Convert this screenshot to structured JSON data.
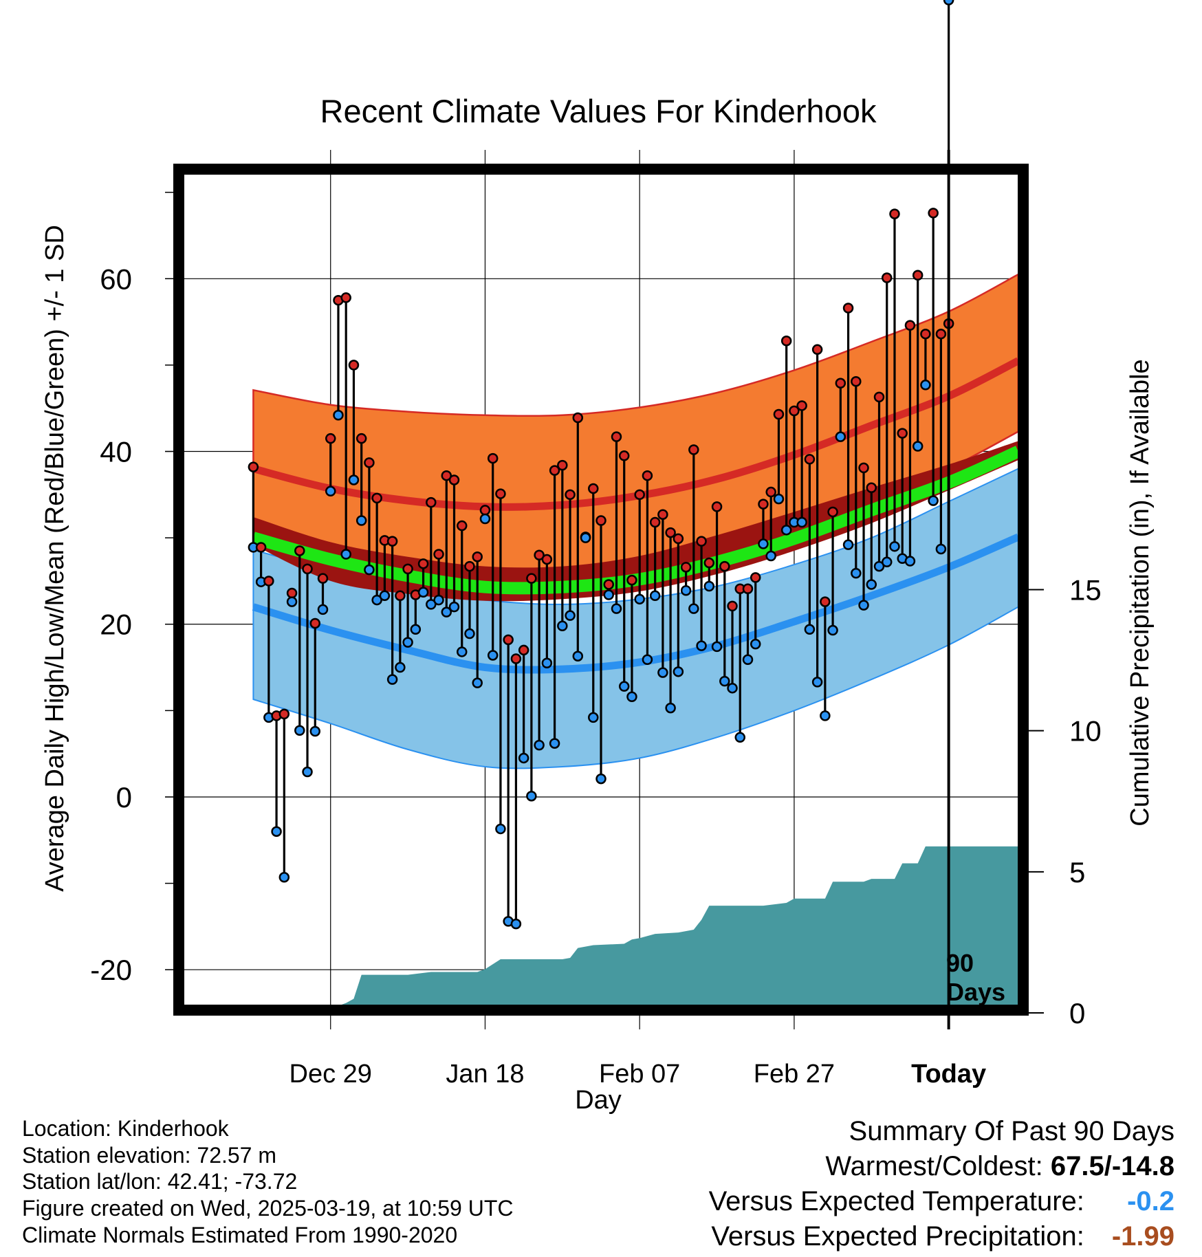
{
  "chart_data": {
    "type": "line",
    "title": "Recent Climate Values For Kinderhook",
    "xlabel": "Day",
    "ylabel_left": "Average Daily High/Low/Mean (Red/Blue/Green) +/- 1 SD",
    "ylabel_right": "Cumulative Precipitation (in), If Available",
    "x_range_days": [
      -100,
      10
    ],
    "ylim_left": [
      -25,
      73
    ],
    "ylim_right": [
      0,
      30
    ],
    "x_ticks": [
      {
        "day": -80,
        "label": "Dec 29"
      },
      {
        "day": -60,
        "label": "Jan 18"
      },
      {
        "day": -40,
        "label": "Feb 07"
      },
      {
        "day": -20,
        "label": "Feb 27"
      },
      {
        "day": 0,
        "label": "Today"
      }
    ],
    "y_ticks_left": [
      "-20",
      "0",
      "20",
      "40",
      "60"
    ],
    "y_ticks_right": [
      "0",
      "5",
      "10",
      "15"
    ],
    "today_marker_label": [
      "90",
      "Days"
    ],
    "colors": {
      "high_band": "#f47b30",
      "high_mean": "#d52a25",
      "low_band": "#85c3e8",
      "low_mean": "#2b91f0",
      "mean_band": "#9b1411",
      "mean_line": "#1ee614",
      "precip": "#47999f",
      "obs_high": "#d52a25",
      "obs_low": "#2b91f0"
    },
    "normal_curve_days": [
      -90,
      -80,
      -70,
      -60,
      -50,
      -40,
      -30,
      -20,
      -10,
      0,
      9
    ],
    "normals": {
      "high_mean": [
        38,
        35.7,
        34.3,
        33.6,
        33.8,
        34.9,
        36.8,
        39.6,
        43,
        46.4,
        50.5
      ],
      "high_upper": [
        47.1,
        45.4,
        44.6,
        44.2,
        44.2,
        45.1,
        46.8,
        49.4,
        52.7,
        56.2,
        60.5
      ],
      "high_lower": [
        29.2,
        26.6,
        24.9,
        24.4,
        24.8,
        26.0,
        28.0,
        30.5,
        34.0,
        38.0,
        42.3
      ],
      "low_mean": [
        22.0,
        19.3,
        17.0,
        15.0,
        14.8,
        15.6,
        17.5,
        20.3,
        23.3,
        26.6,
        30.1
      ],
      "low_upper": [
        28.6,
        26.2,
        24.2,
        22.8,
        22.3,
        22.9,
        24.4,
        26.9,
        30.0,
        34.2,
        38.0
      ],
      "low_lower": [
        11.3,
        8.5,
        5.5,
        3.5,
        3.5,
        4.5,
        6.9,
        10.0,
        13.6,
        17.6,
        22.0
      ],
      "mean_mean": [
        30.0,
        27.5,
        25.6,
        24.3,
        24.3,
        25.2,
        27.2,
        29.9,
        33.2,
        36.4,
        40.0
      ],
      "mean_upper": [
        32.4,
        29.5,
        27.8,
        26.7,
        26.7,
        27.9,
        30.3,
        33.0,
        35.8,
        38.5,
        41.2
      ],
      "mean_lower": [
        29.2,
        25.0,
        23.5,
        22.7,
        22.9,
        23.8,
        25.8,
        28.5,
        31.7,
        35.5,
        39.0
      ]
    },
    "obs_start_day": -90,
    "obs_high": [
      38.2,
      28.9,
      25,
      9.4,
      9.6,
      23.6,
      28.5,
      26.4,
      20.1,
      25.3,
      41.5,
      57.5,
      57.8,
      50,
      41.5,
      38.7,
      34.6,
      29.7,
      29.6,
      23.3,
      26.4,
      23.4,
      27,
      34.1,
      28.1,
      37.2,
      36.7,
      31.4,
      26.7,
      27.8,
      33.2,
      39.2,
      35.1,
      18.2,
      16,
      17,
      25.3,
      28,
      27.5,
      37.8,
      38.4,
      35,
      43.9,
      30.1,
      35.7,
      32,
      24.6,
      41.7,
      39.5,
      25.1,
      35,
      37.2,
      31.8,
      32.7,
      30.6,
      29.9,
      26.6,
      40.2,
      29.6,
      27.1,
      33.6,
      26.7,
      22.1,
      24.1,
      24.1,
      25.4,
      33.9,
      35.3,
      44.3,
      52.8,
      44.7,
      45.3,
      39.1,
      51.8,
      22.6,
      33,
      47.9,
      56.6,
      48.1,
      38.1,
      35.8,
      46.3,
      60.1,
      67.5,
      42.1,
      54.6,
      60.4,
      53.6,
      67.6,
      53.6,
      54.8
    ],
    "obs_low": [
      28.9,
      24.9,
      9.2,
      -4,
      -9.3,
      22.6,
      7.7,
      2.9,
      7.6,
      21.7,
      35.4,
      44.2,
      28.1,
      36.7,
      32,
      26.3,
      22.8,
      23.3,
      13.6,
      15,
      17.9,
      19.4,
      23.7,
      22.3,
      22.8,
      21.4,
      22,
      16.8,
      18.9,
      13.2,
      32.2,
      16.4,
      -3.7,
      -14.4,
      -14.7,
      4.5,
      0.1,
      6,
      15.5,
      6.2,
      19.8,
      21,
      16.3,
      30,
      9.2,
      2.1,
      23.4,
      21.8,
      12.8,
      11.6,
      22.9,
      15.9,
      23.3,
      14.4,
      10.3,
      14.5,
      23.9,
      21.8,
      17.5,
      24.4,
      17.4,
      13.4,
      12.6,
      6.9,
      15.9,
      17.7,
      29.3,
      27.9,
      34.5,
      30.9,
      31.8,
      31.8,
      19.4,
      13.3,
      9.4,
      19.3,
      41.7,
      29.2,
      25.9,
      22.2,
      24.6,
      26.7,
      27.2,
      29,
      27.6,
      27.3,
      40.6,
      47.7,
      34.3,
      28.7
    ],
    "precip_cum": [
      [
        -90,
        0
      ],
      [
        -80,
        0
      ],
      [
        -79,
        0.25
      ],
      [
        -78,
        0.35
      ],
      [
        -77,
        0.5
      ],
      [
        -76,
        1.35
      ],
      [
        -70,
        1.35
      ],
      [
        -67,
        1.45
      ],
      [
        -61,
        1.45
      ],
      [
        -60,
        1.55
      ],
      [
        -58,
        1.9
      ],
      [
        -50,
        1.9
      ],
      [
        -49,
        1.95
      ],
      [
        -48,
        2.3
      ],
      [
        -46,
        2.4
      ],
      [
        -42,
        2.45
      ],
      [
        -41,
        2.6
      ],
      [
        -40,
        2.65
      ],
      [
        -38,
        2.8
      ],
      [
        -35,
        2.85
      ],
      [
        -33,
        2.95
      ],
      [
        -32,
        3.3
      ],
      [
        -31,
        3.8
      ],
      [
        -24,
        3.8
      ],
      [
        -21,
        3.9
      ],
      [
        -20,
        4.05
      ],
      [
        -16,
        4.05
      ],
      [
        -15,
        4.65
      ],
      [
        -11,
        4.65
      ],
      [
        -10,
        4.75
      ],
      [
        -7,
        4.75
      ],
      [
        -6,
        5.3
      ],
      [
        -4,
        5.3
      ],
      [
        -3,
        5.9
      ],
      [
        9,
        5.9
      ]
    ]
  },
  "info": [
    "Location: Kinderhook",
    "Station elevation: 72.57 m",
    "Station lat/lon: 42.41; -73.72",
    "Figure created on Wed, 2025-03-19, at 10:59 UTC",
    "Climate Normals Estimated From 1990-2020"
  ],
  "summary": {
    "heading": "Summary Of Past 90 Days",
    "warmest_coldest_label": "Warmest/Coldest:",
    "warmest_coldest_value": "67.5/-14.8",
    "temp_label": "Versus Expected Temperature:",
    "temp_value": "-0.2",
    "temp_color": "#2b91f0",
    "precip_label": "Versus Expected Precipitation:",
    "precip_value": "-1.99",
    "precip_color": "#a84d1f"
  }
}
